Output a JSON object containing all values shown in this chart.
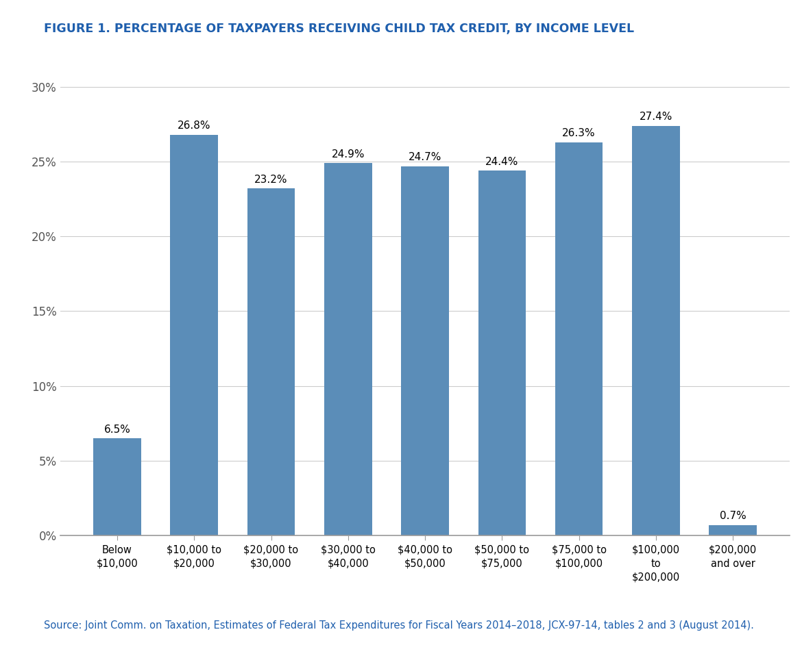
{
  "title": "FIGURE 1. PERCENTAGE OF TAXPAYERS RECEIVING CHILD TAX CREDIT, BY INCOME LEVEL",
  "title_color": "#1F5FAD",
  "bar_color": "#5B8DB8",
  "values": [
    6.5,
    26.8,
    23.2,
    24.9,
    24.7,
    24.4,
    26.3,
    27.4,
    0.7
  ],
  "labels": [
    "Below\n$10,000",
    "$10,000 to\n$20,000",
    "$20,000 to\n$30,000",
    "$30,000 to\n$40,000",
    "$40,000 to\n$50,000",
    "$50,000 to\n$75,000",
    "$75,000 to\n$100,000",
    "$100,000\nto\n$200,000",
    "$200,000\nand over"
  ],
  "value_labels": [
    "6.5%",
    "26.8%",
    "23.2%",
    "24.9%",
    "24.7%",
    "24.4%",
    "26.3%",
    "27.4%",
    "0.7%"
  ],
  "ylim": [
    0,
    31.5
  ],
  "yticks": [
    0,
    5,
    10,
    15,
    20,
    25,
    30
  ],
  "ytick_labels": [
    "0%",
    "5%",
    "10%",
    "15%",
    "20%",
    "25%",
    "30%"
  ],
  "source_text": "Source: Joint Comm. on Taxation, Estimates of Federal Tax Expenditures for Fiscal Years 2014–2018, JCX-97-14, tables 2 and 3 (August 2014).",
  "source_color": "#1F5FAD",
  "background_color": "#FFFFFF",
  "grid_color": "#CCCCCC",
  "label_fontsize": 10.5,
  "title_fontsize": 12.5,
  "value_fontsize": 11,
  "source_fontsize": 10.5,
  "bar_width": 0.62
}
